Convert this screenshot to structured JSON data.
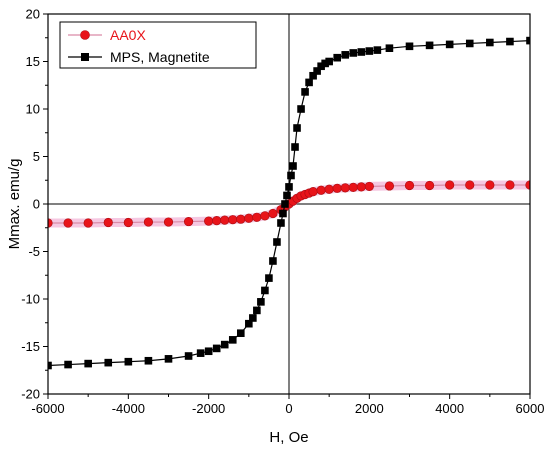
{
  "chart_data": {
    "type": "scatter",
    "xlabel": "H, Oe",
    "ylabel": "Mmax. emu/g",
    "xlim": [
      -6000,
      6000
    ],
    "ylim": [
      -20,
      20
    ],
    "x_ticks": [
      -6000,
      -4000,
      -2000,
      0,
      2000,
      4000,
      6000
    ],
    "y_ticks": [
      -20,
      -15,
      -10,
      -5,
      0,
      5,
      10,
      15,
      20
    ],
    "x_tick_labels": [
      "-6000",
      "-4000",
      "-2000",
      "0",
      "2000",
      "4000",
      "6000"
    ],
    "y_tick_labels": [
      "-20",
      "-15",
      "-10",
      "-5",
      "0",
      "5",
      "10",
      "15",
      "20"
    ],
    "grid": false,
    "zero_lines": true,
    "legend_position": "top-left",
    "series": [
      {
        "name": "AA0X",
        "color": "#e8141a",
        "line_color": "#d98aa6",
        "marker": "circle",
        "x": [
          -6000,
          -5500,
          -5000,
          -4500,
          -4000,
          -3500,
          -3000,
          -2500,
          -2000,
          -1800,
          -1600,
          -1400,
          -1200,
          -1000,
          -800,
          -600,
          -400,
          -200,
          -100,
          0,
          100,
          200,
          300,
          400,
          500,
          600,
          800,
          1000,
          1200,
          1400,
          1600,
          1800,
          2000,
          2500,
          3000,
          3500,
          4000,
          4500,
          5000,
          5500,
          6000
        ],
        "y": [
          -2.0,
          -2.0,
          -2.0,
          -1.95,
          -1.95,
          -1.9,
          -1.9,
          -1.85,
          -1.8,
          -1.75,
          -1.7,
          -1.65,
          -1.6,
          -1.5,
          -1.4,
          -1.25,
          -1.0,
          -0.6,
          -0.3,
          0.0,
          0.3,
          0.6,
          0.85,
          1.0,
          1.15,
          1.3,
          1.45,
          1.55,
          1.65,
          1.7,
          1.75,
          1.8,
          1.85,
          1.9,
          1.95,
          1.95,
          2.0,
          2.0,
          2.0,
          2.0,
          2.0
        ]
      },
      {
        "name": "MPS, Magnetite",
        "color": "#000000",
        "line_color": "#000000",
        "marker": "square",
        "x": [
          -6000,
          -5500,
          -5000,
          -4500,
          -4000,
          -3500,
          -3000,
          -2500,
          -2200,
          -2000,
          -1800,
          -1600,
          -1400,
          -1200,
          -1000,
          -900,
          -800,
          -700,
          -600,
          -500,
          -400,
          -300,
          -200,
          -150,
          -100,
          -50,
          0,
          50,
          100,
          150,
          200,
          300,
          400,
          500,
          600,
          700,
          800,
          900,
          1000,
          1200,
          1400,
          1600,
          1800,
          2000,
          2200,
          2500,
          3000,
          3500,
          4000,
          4500,
          5000,
          5500,
          6000
        ],
        "y": [
          -17.0,
          -16.9,
          -16.8,
          -16.7,
          -16.6,
          -16.5,
          -16.3,
          -16.0,
          -15.7,
          -15.5,
          -15.2,
          -14.8,
          -14.3,
          -13.6,
          -12.6,
          -12.0,
          -11.2,
          -10.3,
          -9.1,
          -7.8,
          -6.0,
          -4.0,
          -2.0,
          -1.0,
          0.0,
          0.9,
          1.8,
          3.0,
          4.0,
          6.0,
          8.0,
          10.0,
          11.8,
          12.8,
          13.5,
          14.0,
          14.5,
          14.8,
          15.0,
          15.4,
          15.7,
          15.9,
          16.0,
          16.1,
          16.2,
          16.4,
          16.6,
          16.7,
          16.8,
          16.9,
          17.0,
          17.1,
          17.2
        ]
      }
    ]
  }
}
